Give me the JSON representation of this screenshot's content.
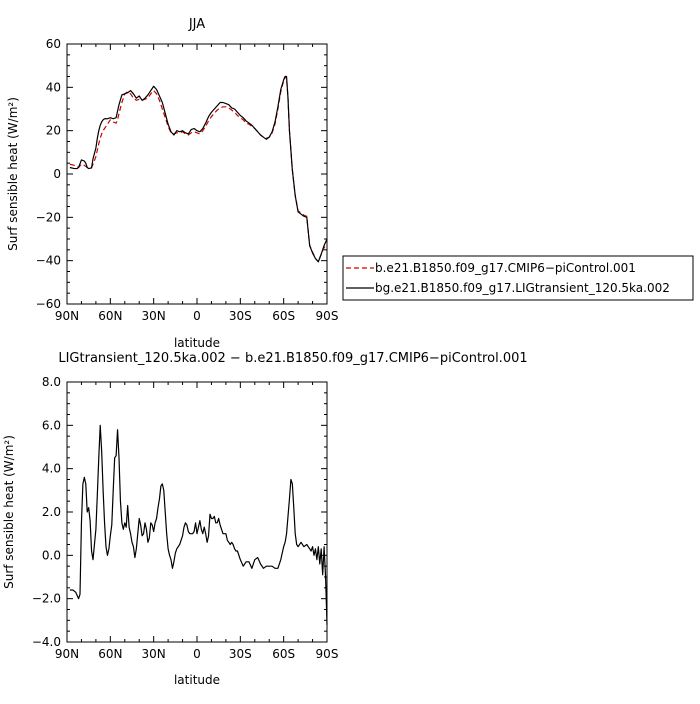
{
  "chart_data": [
    {
      "type": "line",
      "title": "JJA",
      "xlabel": "latitude",
      "ylabel": "Surf sensible heat (W/m²)",
      "xlim": [
        90,
        -90
      ],
      "ylim": [
        -60,
        60
      ],
      "x_ticks": [
        "90N",
        "60N",
        "30N",
        "0",
        "30S",
        "60S",
        "90S"
      ],
      "y_ticks": [
        "60",
        "40",
        "20",
        "0",
        "−20",
        "−40",
        "−60"
      ],
      "legend_position": "right",
      "grid": false,
      "series": [
        {
          "name": "b.e21.B1850.f09_g17.CMIP6−piControl.001",
          "color": "#cc0000",
          "style": "dashed",
          "x": [
            88,
            85,
            83,
            82,
            80,
            78,
            77,
            76,
            75,
            73,
            72,
            70,
            69,
            68,
            67,
            66,
            65,
            64,
            62,
            60,
            58,
            56,
            55,
            54,
            52,
            50,
            48,
            46,
            44,
            42,
            40,
            38,
            36,
            34,
            32,
            30,
            28,
            26,
            24,
            22,
            20,
            18,
            16,
            14,
            12,
            10,
            8,
            6,
            4,
            2,
            0,
            -2,
            -4,
            -6,
            -8,
            -10,
            -12,
            -14,
            -16,
            -18,
            -20,
            -22,
            -24,
            -26,
            -28,
            -30,
            -32,
            -34,
            -36,
            -38,
            -40,
            -42,
            -44,
            -46,
            -48,
            -50,
            -52,
            -54,
            -56,
            -58,
            -60,
            -61,
            -62,
            -63,
            -64,
            -66,
            -68,
            -70,
            -72,
            -74,
            -76,
            -78,
            -80,
            -82,
            -84,
            -86,
            -88,
            -90
          ],
          "y": [
            4.5,
            4.0,
            3.5,
            3.0,
            4.5,
            4.0,
            3.5,
            3.0,
            3.0,
            3.0,
            4.5,
            8.0,
            11.0,
            14.0,
            16.5,
            18.5,
            20.0,
            21.0,
            23.0,
            25.0,
            24.0,
            23.5,
            25.0,
            28.0,
            33.0,
            37.0,
            38.0,
            37.0,
            35.0,
            34.0,
            34.5,
            34.0,
            34.5,
            35.0,
            37.0,
            38.5,
            37.0,
            34.0,
            30.0,
            26.0,
            22.0,
            19.0,
            18.5,
            19.0,
            19.0,
            19.5,
            18.5,
            18.0,
            19.0,
            19.5,
            19.0,
            18.5,
            20.0,
            22.0,
            24.5,
            26.5,
            28.0,
            29.5,
            30.5,
            31.0,
            31.0,
            30.5,
            29.5,
            28.5,
            27.0,
            26.0,
            25.0,
            23.5,
            23.0,
            22.0,
            21.0,
            19.5,
            18.0,
            17.0,
            16.5,
            17.0,
            19.0,
            23.0,
            30.0,
            38.0,
            43.0,
            45.0,
            44.0,
            35.0,
            20.0,
            2.0,
            -10.0,
            -17.0,
            -18.0,
            -19.0,
            -19.5,
            -33.0,
            -36.0,
            -39.0,
            -40.5,
            -37.0,
            -34.0,
            -32.0
          ]
        },
        {
          "name": "bg.e21.B1850.f09_g17.LIGtransient_120.5ka.002",
          "color": "#000000",
          "style": "solid",
          "x": [
            88,
            85,
            83,
            82,
            80,
            78,
            77,
            76,
            75,
            73,
            72,
            70,
            69,
            68,
            67,
            66,
            65,
            64,
            62,
            60,
            58,
            56,
            55,
            54,
            52,
            50,
            48,
            46,
            44,
            42,
            40,
            38,
            36,
            34,
            32,
            30,
            28,
            26,
            24,
            22,
            20,
            18,
            16,
            14,
            12,
            10,
            8,
            6,
            4,
            2,
            0,
            -2,
            -4,
            -6,
            -8,
            -10,
            -12,
            -14,
            -16,
            -18,
            -20,
            -22,
            -24,
            -26,
            -28,
            -30,
            -32,
            -34,
            -36,
            -38,
            -40,
            -42,
            -44,
            -46,
            -48,
            -50,
            -52,
            -54,
            -56,
            -58,
            -60,
            -61,
            -62,
            -63,
            -64,
            -66,
            -68,
            -70,
            -72,
            -74,
            -76,
            -78,
            -80,
            -82,
            -84,
            -86,
            -88,
            -90
          ],
          "y": [
            3.0,
            2.5,
            2.5,
            3.0,
            6.5,
            6.0,
            5.0,
            3.0,
            2.5,
            2.8,
            7.0,
            12.0,
            16.5,
            20.0,
            22.5,
            24.0,
            25.0,
            25.5,
            25.5,
            26.0,
            25.5,
            26.0,
            29.0,
            32.0,
            36.5,
            37.0,
            37.5,
            38.5,
            37.0,
            35.0,
            36.0,
            34.0,
            35.0,
            36.5,
            38.5,
            40.5,
            39.0,
            36.0,
            33.0,
            28.0,
            23.0,
            19.5,
            18.0,
            20.0,
            19.5,
            20.0,
            19.0,
            18.5,
            20.5,
            21.0,
            20.0,
            19.5,
            21.0,
            23.5,
            26.5,
            28.5,
            30.0,
            31.5,
            33.0,
            33.0,
            32.5,
            32.0,
            30.5,
            30.0,
            28.5,
            27.0,
            26.0,
            24.5,
            23.5,
            22.5,
            21.0,
            19.5,
            18.0,
            17.0,
            16.0,
            17.0,
            19.5,
            24.0,
            31.0,
            39.0,
            43.5,
            45.0,
            45.0,
            35.0,
            20.0,
            2.0,
            -10.0,
            -17.5,
            -18.5,
            -19.5,
            -20.0,
            -33.0,
            -36.5,
            -39.0,
            -40.5,
            -37.0,
            -33.0,
            -30.0
          ]
        }
      ]
    },
    {
      "type": "line",
      "title": "LIGtransient_120.5ka.002 − b.e21.B1850.f09_g17.CMIP6−piControl.001",
      "xlabel": "latitude",
      "ylabel": "Surf sensible heat (W/m²)",
      "xlim": [
        90,
        -90
      ],
      "ylim": [
        -4,
        8
      ],
      "x_ticks": [
        "90N",
        "60N",
        "30N",
        "0",
        "30S",
        "60S",
        "90S"
      ],
      "y_ticks": [
        "8.0",
        "6.0",
        "4.0",
        "2.0",
        "0.0",
        "−2.0",
        "−4.0"
      ],
      "grid": false,
      "series": [
        {
          "color": "#000000",
          "style": "solid",
          "x": [
            88,
            86,
            84,
            82,
            81,
            80,
            79,
            78,
            77,
            76,
            75,
            74,
            73,
            72,
            71,
            70,
            69,
            68,
            67,
            66,
            65,
            64,
            63,
            62,
            61,
            60,
            59,
            58,
            57,
            56,
            55,
            54,
            53,
            52,
            51,
            50,
            49,
            48,
            47,
            46,
            45,
            44,
            43,
            42,
            41,
            40,
            39,
            38,
            37,
            36,
            35,
            34,
            33,
            32,
            31,
            30,
            29,
            28,
            27,
            26,
            25,
            24,
            23,
            22,
            21,
            20,
            19,
            18,
            17,
            16,
            15,
            14,
            13,
            12,
            11,
            10,
            9,
            8,
            7,
            6,
            5,
            4,
            3,
            2,
            1,
            0,
            -1,
            -2,
            -3,
            -4,
            -5,
            -6,
            -7,
            -8,
            -9,
            -10,
            -11,
            -12,
            -13,
            -14,
            -15,
            -16,
            -17,
            -18,
            -19,
            -20,
            -21,
            -22,
            -23,
            -24,
            -25,
            -26,
            -27,
            -28,
            -29,
            -30,
            -32,
            -34,
            -36,
            -38,
            -40,
            -42,
            -44,
            -46,
            -48,
            -50,
            -52,
            -54,
            -56,
            -58,
            -60,
            -61,
            -62,
            -63,
            -64,
            -65,
            -66,
            -67,
            -68,
            -69,
            -70,
            -72,
            -74,
            -76,
            -78,
            -79,
            -80,
            -81,
            -82,
            -83,
            -84,
            -85,
            -86,
            -87,
            -88,
            -89,
            -90
          ],
          "y": [
            -1.6,
            -1.6,
            -1.7,
            -2.0,
            -1.8,
            1.5,
            3.3,
            3.6,
            3.3,
            2.0,
            2.2,
            1.6,
            0.2,
            -0.2,
            0.5,
            1.2,
            2.8,
            4.5,
            6.0,
            4.8,
            3.0,
            1.5,
            0.4,
            0.0,
            0.3,
            0.9,
            1.4,
            3.0,
            4.5,
            4.6,
            5.8,
            4.5,
            2.5,
            1.5,
            1.2,
            1.5,
            1.3,
            2.3,
            1.3,
            1.0,
            0.6,
            0.4,
            -0.1,
            0.3,
            1.0,
            1.7,
            1.4,
            0.9,
            1.0,
            1.5,
            1.2,
            0.6,
            0.8,
            1.5,
            1.4,
            1.1,
            1.5,
            1.7,
            2.2,
            2.6,
            3.2,
            3.3,
            3.0,
            2.0,
            1.0,
            0.3,
            0.0,
            -0.2,
            -0.6,
            -0.3,
            0.1,
            0.3,
            0.4,
            0.5,
            0.7,
            0.9,
            1.3,
            1.5,
            1.4,
            1.1,
            1.0,
            1.0,
            1.0,
            1.1,
            1.5,
            1.0,
            1.3,
            1.6,
            1.2,
            1.0,
            1.3,
            1.0,
            0.6,
            0.9,
            1.9,
            1.7,
            1.7,
            1.8,
            1.5,
            1.5,
            1.7,
            1.4,
            1.2,
            1.0,
            1.0,
            1.0,
            0.7,
            0.6,
            0.5,
            0.6,
            0.5,
            0.3,
            0.2,
            0.2,
            0.0,
            -0.2,
            -0.5,
            -0.3,
            -0.3,
            -0.6,
            -0.2,
            -0.1,
            -0.4,
            -0.6,
            -0.5,
            -0.5,
            -0.5,
            -0.6,
            -0.6,
            -0.2,
            0.4,
            0.6,
            1.0,
            1.8,
            2.6,
            3.5,
            3.3,
            2.2,
            1.0,
            0.5,
            0.4,
            0.6,
            0.4,
            0.5,
            0.3,
            0.2,
            0.4,
            0.0,
            0.3,
            -0.2,
            0.4,
            -0.4,
            0.3,
            -0.9,
            0.4,
            -1.0,
            -3.2
          ]
        }
      ]
    }
  ]
}
